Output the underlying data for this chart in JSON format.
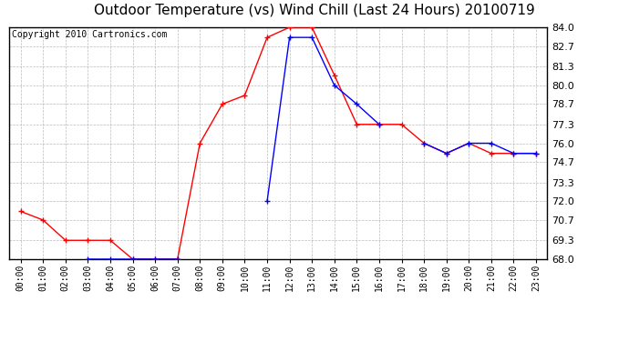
{
  "title": "Outdoor Temperature (vs) Wind Chill (Last 24 Hours) 20100719",
  "copyright": "Copyright 2010 Cartronics.com",
  "x_labels": [
    "00:00",
    "01:00",
    "02:00",
    "03:00",
    "04:00",
    "05:00",
    "06:00",
    "07:00",
    "08:00",
    "09:00",
    "10:00",
    "11:00",
    "12:00",
    "13:00",
    "14:00",
    "15:00",
    "16:00",
    "17:00",
    "18:00",
    "19:00",
    "20:00",
    "21:00",
    "22:00",
    "23:00"
  ],
  "temp_red": [
    71.3,
    70.7,
    69.3,
    69.3,
    69.3,
    68.0,
    68.0,
    68.0,
    76.0,
    78.7,
    79.3,
    83.3,
    84.0,
    84.0,
    80.7,
    77.3,
    77.3,
    77.3,
    76.0,
    75.3,
    76.0,
    75.3,
    75.3,
    75.3
  ],
  "wind_chill_blue": [
    null,
    null,
    null,
    68.0,
    68.0,
    68.0,
    68.0,
    68.0,
    null,
    null,
    null,
    72.0,
    83.3,
    83.3,
    80.0,
    78.7,
    77.3,
    null,
    76.0,
    75.3,
    76.0,
    76.0,
    75.3,
    75.3
  ],
  "ylim": [
    68.0,
    84.0
  ],
  "yticks": [
    68.0,
    69.3,
    70.7,
    72.0,
    73.3,
    74.7,
    76.0,
    77.3,
    78.7,
    80.0,
    81.3,
    82.7,
    84.0
  ],
  "red_color": "#FF0000",
  "blue_color": "#0000FF",
  "bg_color": "#FFFFFF",
  "grid_color": "#AAAAAA",
  "title_fontsize": 11,
  "copyright_fontsize": 7
}
